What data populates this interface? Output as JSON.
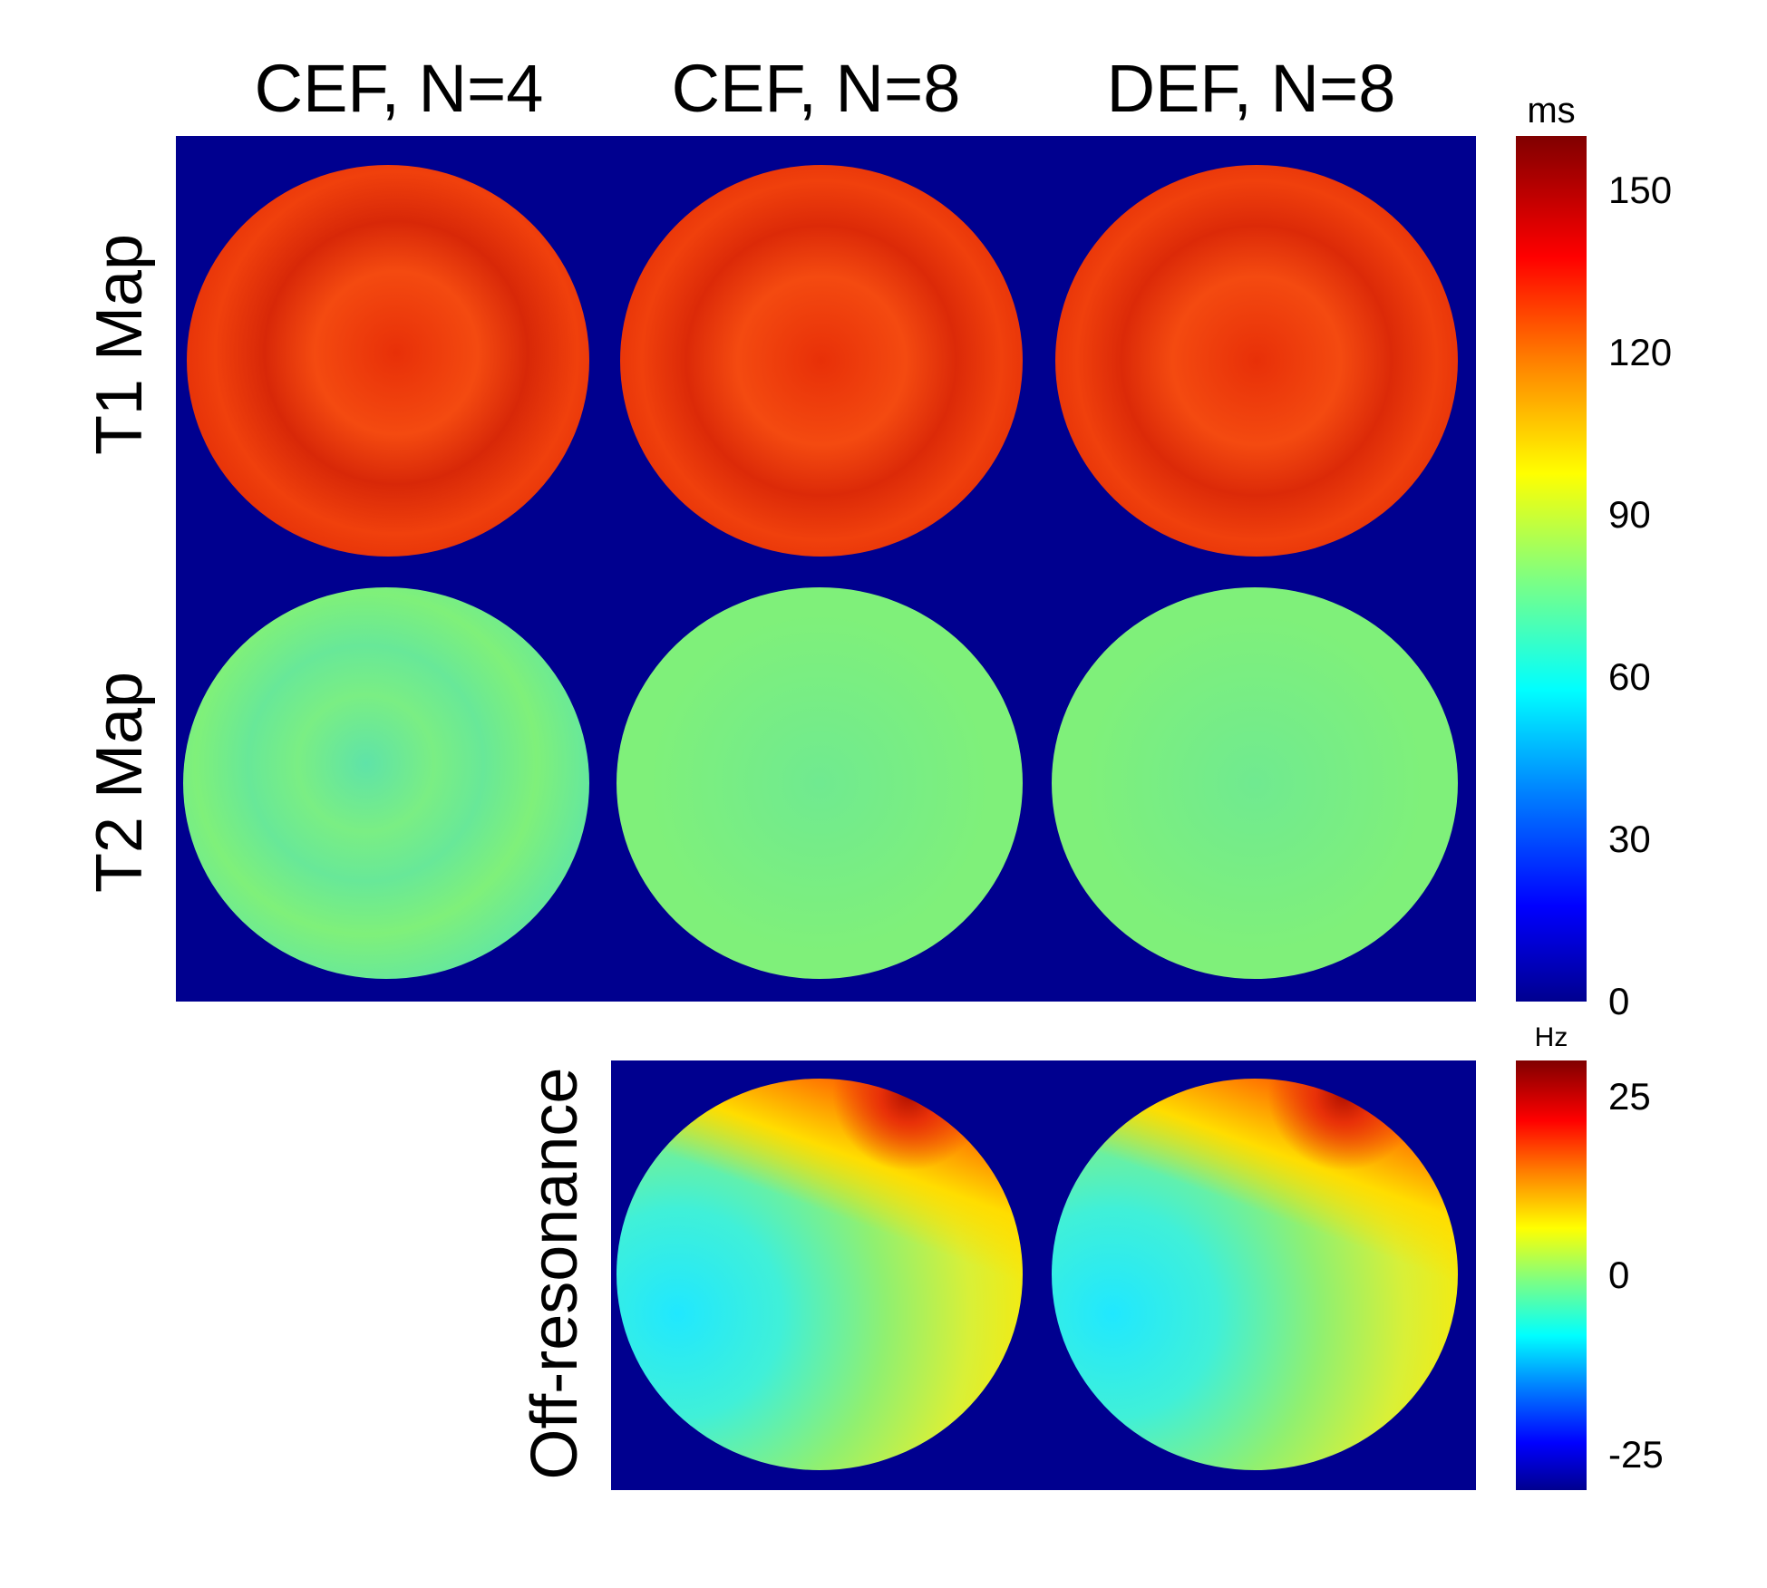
{
  "figure": {
    "column_titles": [
      "CEF, N=4",
      "CEF, N=8",
      "DEF, N=8"
    ],
    "row_labels": {
      "t1": "T1 Map",
      "t2": "T2 Map",
      "offres": "Off-resonance"
    },
    "colorbar_relaxation": {
      "unit": "ms",
      "ticks": [
        "150",
        "120",
        "90",
        "60",
        "30",
        "0"
      ],
      "range": [
        0,
        160
      ]
    },
    "colorbar_offresonance": {
      "unit": "Hz",
      "ticks": [
        "25",
        "0",
        "-25"
      ],
      "range": [
        -30,
        30
      ]
    },
    "colormap": "jet",
    "colors": {
      "background": "#00008f",
      "t1_fill": "#f0300a",
      "t1_dark": "#c81000",
      "t2_fill": "#7ff07a",
      "t2_alt": "#5fe3a8"
    }
  }
}
